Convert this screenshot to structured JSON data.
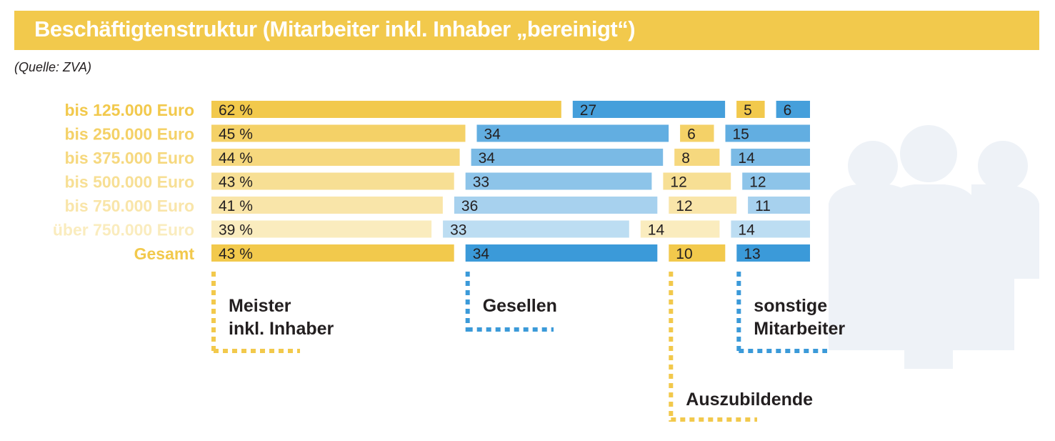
{
  "title": "Beschäftigtenstruktur (Mitarbeiter inkl. Inhaber „bereinigt“)",
  "source": "(Quelle: ZVA)",
  "colors": {
    "title_bar": "#f2c94c",
    "meister": "#f2c94c",
    "gesellen": "#3b9ad9",
    "auszubildende": "#f2c94c",
    "sonstige": "#3b9ad9",
    "text_dark": "#231f20"
  },
  "chart_data": {
    "type": "bar",
    "stacked": true,
    "categories": [
      "bis 125.000 Euro",
      "bis 250.000 Euro",
      "bis 375.000 Euro",
      "bis 500.000 Euro",
      "bis 750.000 Euro",
      "über 750.000 Euro",
      "Gesamt"
    ],
    "series": [
      {
        "name": "Meister inkl. Inhaber",
        "values": [
          62,
          45,
          44,
          43,
          41,
          39,
          43
        ],
        "labels": [
          "62 %",
          "45 %",
          "44 %",
          "43 %",
          "41 %",
          "39 %",
          "43 %"
        ]
      },
      {
        "name": "Gesellen",
        "values": [
          27,
          34,
          34,
          33,
          36,
          33,
          34
        ],
        "labels": [
          "27",
          "34",
          "34",
          "33",
          "36",
          "33",
          "34"
        ]
      },
      {
        "name": "Auszubildende",
        "values": [
          5,
          6,
          8,
          12,
          12,
          14,
          10
        ],
        "labels": [
          "5",
          "6",
          "8",
          "12",
          "12",
          "14",
          "10"
        ]
      },
      {
        "name": "sonstige Mitarbeiter",
        "values": [
          6,
          15,
          14,
          12,
          11,
          14,
          13
        ],
        "labels": [
          "6",
          "15",
          "14",
          "12",
          "11",
          "14",
          "13"
        ]
      }
    ],
    "legend": {
      "meister": [
        "Meister",
        "inkl. Inhaber"
      ],
      "gesellen": [
        "Gesellen"
      ],
      "auszubildende": [
        "Auszubildende"
      ],
      "sonstige": [
        "sonstige",
        "Mitarbeiter"
      ]
    },
    "unit": "%"
  }
}
